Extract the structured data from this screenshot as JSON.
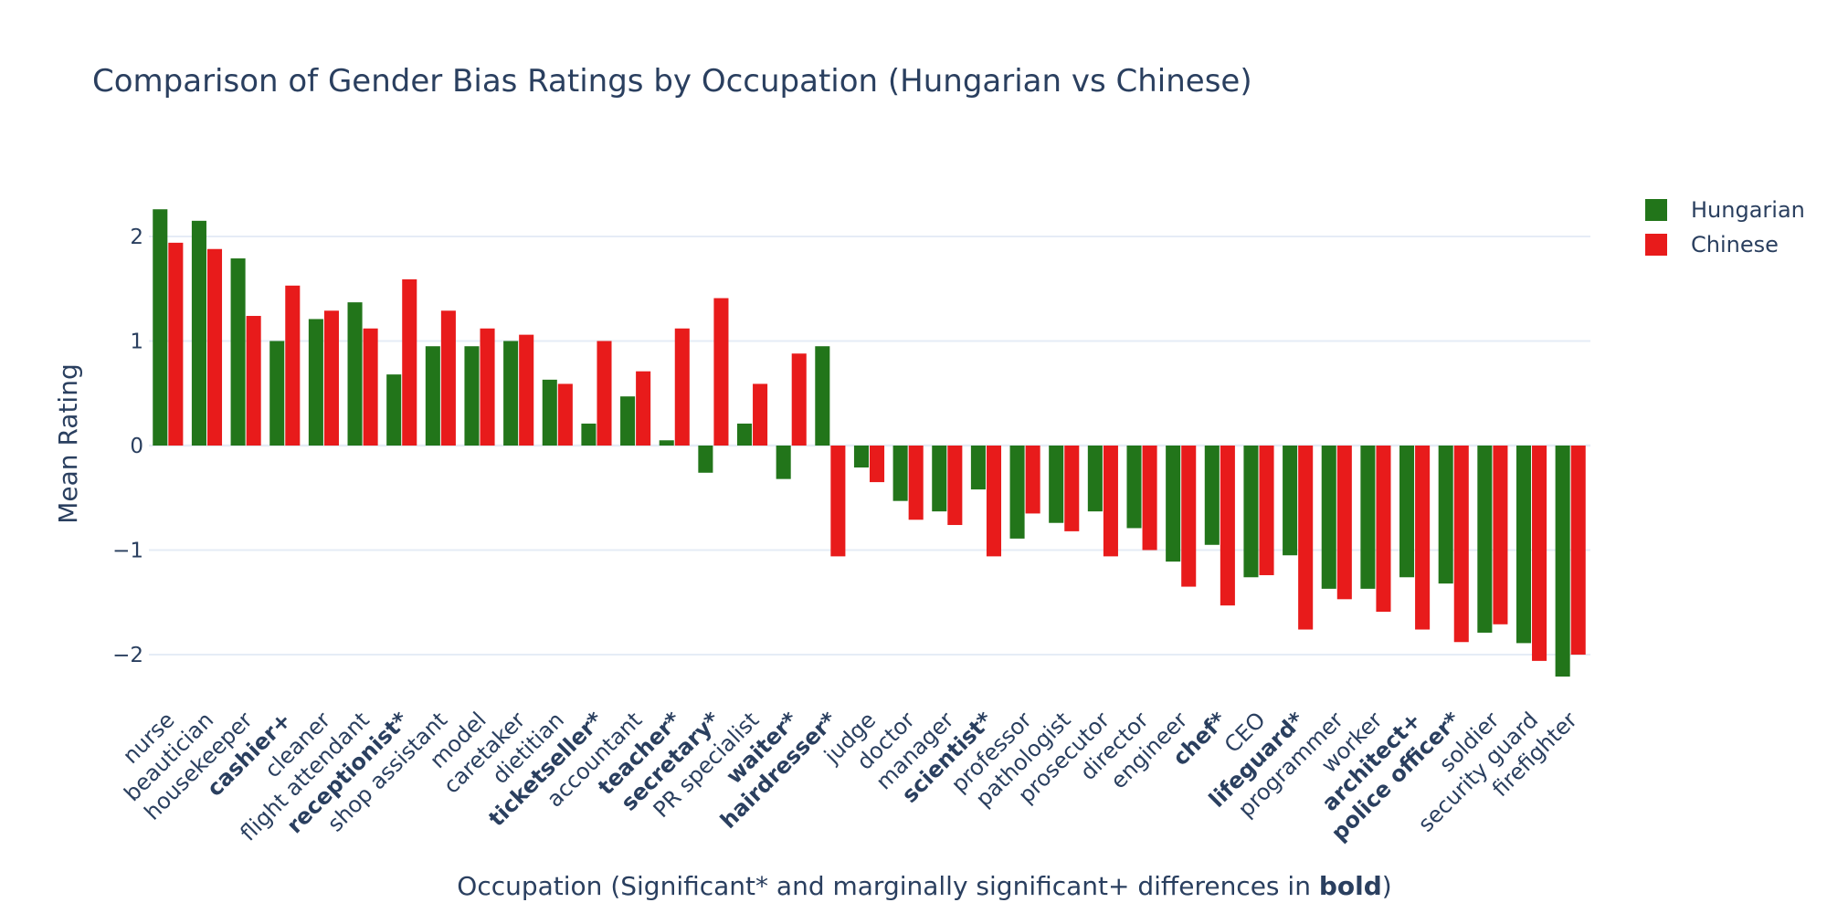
{
  "chart_data": {
    "type": "bar",
    "title": "Comparison of Gender Bias Ratings by Occupation (Hungarian vs Chinese)",
    "xlabel_parts": [
      {
        "text": "Occupation (Significant* and marginally significant+ differences in ",
        "bold": false
      },
      {
        "text": "bold",
        "bold": true
      },
      {
        "text": ")",
        "bold": false
      }
    ],
    "ylabel": "Mean Rating",
    "ylim": [
      -2.52,
      2.52
    ],
    "yticks": [
      2,
      1,
      0,
      -1,
      -2
    ],
    "ytick_labels": [
      "2",
      "1",
      "0",
      "−1",
      "−2"
    ],
    "legend_position": "top-right",
    "grid": true,
    "categories": [
      {
        "label": "nurse",
        "bold": false
      },
      {
        "label": "beautician",
        "bold": false
      },
      {
        "label": "housekeeper",
        "bold": false
      },
      {
        "label": "cashier+",
        "bold": true
      },
      {
        "label": "cleaner",
        "bold": false
      },
      {
        "label": "flight attendant",
        "bold": false
      },
      {
        "label": "receptionist*",
        "bold": true
      },
      {
        "label": "shop assistant",
        "bold": false
      },
      {
        "label": "model",
        "bold": false
      },
      {
        "label": "caretaker",
        "bold": false
      },
      {
        "label": "dietitian",
        "bold": false
      },
      {
        "label": "ticketseller*",
        "bold": true
      },
      {
        "label": "accountant",
        "bold": false
      },
      {
        "label": "teacher*",
        "bold": true
      },
      {
        "label": "secretary*",
        "bold": true
      },
      {
        "label": "PR specialist",
        "bold": false
      },
      {
        "label": "waiter*",
        "bold": true
      },
      {
        "label": "hairdresser*",
        "bold": true
      },
      {
        "label": "judge",
        "bold": false
      },
      {
        "label": "doctor",
        "bold": false
      },
      {
        "label": "manager",
        "bold": false
      },
      {
        "label": "scientist*",
        "bold": true
      },
      {
        "label": "professor",
        "bold": false
      },
      {
        "label": "pathologist",
        "bold": false
      },
      {
        "label": "prosecutor",
        "bold": false
      },
      {
        "label": "director",
        "bold": false
      },
      {
        "label": "engineer",
        "bold": false
      },
      {
        "label": "chef*",
        "bold": true
      },
      {
        "label": "CEO",
        "bold": false
      },
      {
        "label": "lifeguard*",
        "bold": true
      },
      {
        "label": "programmer",
        "bold": false
      },
      {
        "label": "worker",
        "bold": false
      },
      {
        "label": "architect+",
        "bold": true
      },
      {
        "label": "police officer*",
        "bold": true
      },
      {
        "label": "soldier",
        "bold": false
      },
      {
        "label": "security guard",
        "bold": false
      },
      {
        "label": "firefighter",
        "bold": false
      }
    ],
    "series": [
      {
        "name": "Hungarian",
        "color": "#22751a",
        "values": [
          2.26,
          2.15,
          1.79,
          1.0,
          1.21,
          1.37,
          0.68,
          0.95,
          0.95,
          1.0,
          0.63,
          0.21,
          0.47,
          0.05,
          -0.26,
          0.21,
          -0.32,
          0.95,
          -0.21,
          -0.53,
          -0.63,
          -0.42,
          -0.89,
          -0.74,
          -0.63,
          -0.79,
          -1.11,
          -0.95,
          -1.26,
          -1.05,
          -1.37,
          -1.37,
          -1.26,
          -1.32,
          -1.79,
          -1.89,
          -2.21
        ]
      },
      {
        "name": "Chinese",
        "color": "#e81b1b",
        "values": [
          1.94,
          1.88,
          1.24,
          1.53,
          1.29,
          1.12,
          1.59,
          1.29,
          1.12,
          1.06,
          0.59,
          1.0,
          0.71,
          1.12,
          1.41,
          0.59,
          0.88,
          -1.06,
          -0.35,
          -0.71,
          -0.76,
          -1.06,
          -0.65,
          -0.82,
          -1.06,
          -1.0,
          -1.35,
          -1.53,
          -1.24,
          -1.76,
          -1.47,
          -1.59,
          -1.76,
          -1.88,
          -1.71,
          -2.06,
          -2.0
        ]
      }
    ]
  }
}
